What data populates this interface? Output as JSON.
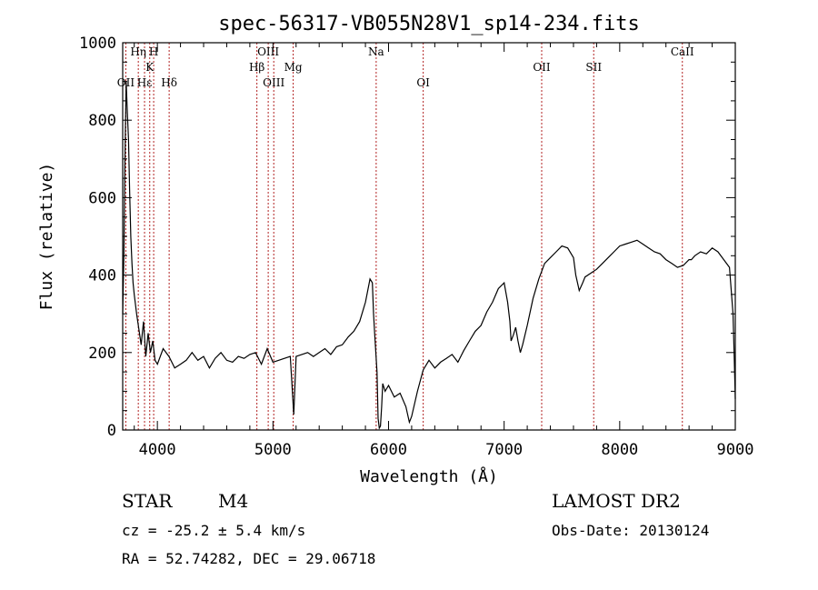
{
  "chart_data": {
    "type": "line",
    "title": "spec-56317-VB055N28V1_sp14-234.fits",
    "xlabel": "Wavelength (Å)",
    "ylabel": "Flux (relative)",
    "xlim": [
      3700,
      9000
    ],
    "ylim": [
      0,
      1000
    ],
    "xticks": [
      4000,
      5000,
      6000,
      7000,
      8000,
      9000
    ],
    "yticks": [
      0,
      200,
      400,
      600,
      800,
      1000
    ],
    "grid": false,
    "series": [
      {
        "x": [
          3700,
          3710,
          3720,
          3730,
          3740,
          3750,
          3760,
          3770,
          3780,
          3790,
          3800,
          3820,
          3840,
          3860,
          3880,
          3900,
          3920,
          3940,
          3960,
          3980,
          4000,
          4050,
          4100,
          4150,
          4200,
          4250,
          4300,
          4350,
          4400,
          4450,
          4500,
          4550,
          4600,
          4650,
          4700,
          4750,
          4800,
          4850,
          4900,
          4950,
          5000,
          5050,
          5100,
          5150,
          5180,
          5200,
          5250,
          5300,
          5350,
          5400,
          5450,
          5500,
          5550,
          5600,
          5650,
          5700,
          5750,
          5800,
          5820,
          5840,
          5860,
          5870,
          5880,
          5890,
          5900,
          5910,
          5920,
          5930,
          5940,
          5950,
          5970,
          6000,
          6050,
          6100,
          6150,
          6180,
          6200,
          6250,
          6300,
          6350,
          6400,
          6450,
          6500,
          6550,
          6600,
          6650,
          6700,
          6750,
          6800,
          6850,
          6900,
          6950,
          7000,
          7030,
          7050,
          7060,
          7080,
          7100,
          7120,
          7140,
          7160,
          7200,
          7250,
          7300,
          7350,
          7400,
          7450,
          7500,
          7550,
          7600,
          7620,
          7650,
          7680,
          7700,
          7750,
          7800,
          7850,
          7900,
          7950,
          8000,
          8050,
          8100,
          8150,
          8200,
          8250,
          8300,
          8350,
          8400,
          8450,
          8500,
          8550,
          8600,
          8620,
          8650,
          8700,
          8750,
          8800,
          8850,
          8900,
          8950,
          8980,
          8990,
          9000
        ],
        "y": [
          300,
          450,
          700,
          900,
          820,
          750,
          620,
          500,
          430,
          380,
          350,
          300,
          260,
          220,
          280,
          190,
          250,
          200,
          230,
          180,
          170,
          210,
          190,
          160,
          170,
          180,
          200,
          180,
          190,
          160,
          185,
          200,
          180,
          175,
          190,
          185,
          195,
          200,
          170,
          210,
          175,
          180,
          185,
          190,
          40,
          190,
          195,
          200,
          190,
          200,
          210,
          195,
          215,
          220,
          240,
          255,
          280,
          330,
          360,
          390,
          380,
          300,
          250,
          200,
          150,
          30,
          5,
          10,
          60,
          120,
          100,
          115,
          85,
          95,
          60,
          20,
          35,
          100,
          155,
          180,
          160,
          175,
          185,
          195,
          175,
          205,
          230,
          255,
          270,
          305,
          330,
          365,
          380,
          330,
          280,
          230,
          245,
          265,
          230,
          200,
          220,
          270,
          340,
          390,
          430,
          445,
          460,
          475,
          470,
          445,
          400,
          360,
          380,
          395,
          405,
          415,
          430,
          445,
          460,
          475,
          480,
          485,
          490,
          480,
          470,
          460,
          455,
          440,
          430,
          420,
          425,
          440,
          440,
          450,
          460,
          455,
          470,
          460,
          440,
          420,
          300,
          200,
          80
        ]
      }
    ],
    "annotations": [
      {
        "label": "OII",
        "x": 3727,
        "row": 3
      },
      {
        "label": "Hη",
        "x": 3835,
        "row": 1
      },
      {
        "label": "H",
        "x": 3968,
        "row": 1
      },
      {
        "label": "Hε",
        "x": 3889,
        "row": 3
      },
      {
        "label": "K",
        "x": 3934,
        "row": 2
      },
      {
        "label": "Hδ",
        "x": 4102,
        "row": 3
      },
      {
        "label": "Hβ",
        "x": 4861,
        "row": 2
      },
      {
        "label": "OIII",
        "x": 4959,
        "row": 1
      },
      {
        "label": "OIII",
        "x": 5007,
        "row": 3
      },
      {
        "label": "Mg",
        "x": 5175,
        "row": 2
      },
      {
        "label": "Na",
        "x": 5893,
        "row": 1
      },
      {
        "label": "OI",
        "x": 6300,
        "row": 3
      },
      {
        "label": "OII",
        "x": 7325,
        "row": 2
      },
      {
        "label": "SII",
        "x": 7775,
        "row": 2
      },
      {
        "label": "CaII",
        "x": 8542,
        "row": 1
      }
    ],
    "line_markers": [
      3727,
      3835,
      3889,
      3934,
      3968,
      4102,
      4861,
      4959,
      5007,
      5175,
      5893,
      6300,
      7325,
      7775,
      8542
    ],
    "colors": {
      "axis": "#000000",
      "spectrum": "#000000",
      "markers": "#b22222"
    }
  },
  "info": {
    "class_label": "STAR",
    "subclass": "M4",
    "cz": "cz = -25.2 ± 5.4 km/s",
    "coords": "RA =  52.74282, DEC =  29.06718",
    "survey": "LAMOST DR2",
    "obs_date": "Obs-Date: 20130124"
  }
}
